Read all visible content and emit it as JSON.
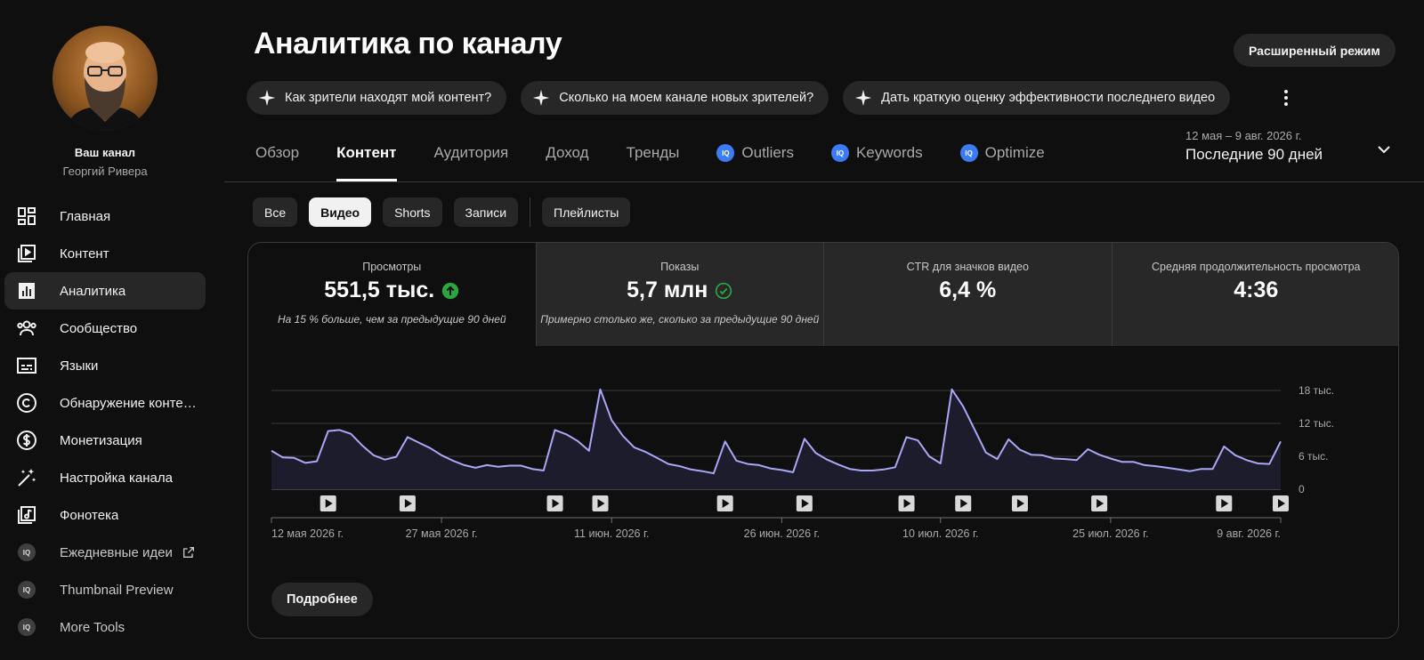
{
  "sidebar": {
    "channel_title": "Ваш канал",
    "channel_name": "Георгий Ривера",
    "items": [
      {
        "label": "Главная",
        "icon": "dashboard-icon"
      },
      {
        "label": "Контент",
        "icon": "content-icon"
      },
      {
        "label": "Аналитика",
        "icon": "analytics-icon",
        "active": true
      },
      {
        "label": "Сообщество",
        "icon": "community-icon"
      },
      {
        "label": "Языки",
        "icon": "subtitles-icon"
      },
      {
        "label": "Обнаружение контента",
        "icon": "copyright-icon"
      },
      {
        "label": "Монетизация",
        "icon": "dollar-icon"
      },
      {
        "label": "Настройка канала",
        "icon": "magic-wand-icon"
      },
      {
        "label": "Фонотека",
        "icon": "audio-library-icon"
      }
    ],
    "ext_items": [
      {
        "label": "Ежедневные идеи",
        "icon": "vidiq-icon",
        "external": true
      },
      {
        "label": "Thumbnail Preview",
        "icon": "vidiq-icon"
      },
      {
        "label": "More Tools",
        "icon": "vidiq-icon"
      }
    ],
    "iq_badge": "IQ"
  },
  "header": {
    "title": "Аналитика по каналу",
    "advanced_mode": "Расширенный режим"
  },
  "suggestions": [
    "Как зрители находят мой контент?",
    "Сколько на моем канале новых зрителей?",
    "Дать краткую оценку эффективности последнего видео"
  ],
  "tabs": [
    {
      "label": "Обзор"
    },
    {
      "label": "Контент",
      "active": true
    },
    {
      "label": "Аудитория"
    },
    {
      "label": "Доход"
    },
    {
      "label": "Тренды"
    },
    {
      "label": "Outliers",
      "iq": true
    },
    {
      "label": "Keywords",
      "iq": true
    },
    {
      "label": "Optimize",
      "iq": true
    }
  ],
  "date_range": {
    "dates": "12 мая – 9 авг. 2026 г.",
    "label": "Последние 90 дней"
  },
  "filters": {
    "all": "Все",
    "video": "Видео",
    "shorts": "Shorts",
    "records": "Записи",
    "playlists": "Плейлисты"
  },
  "metrics": [
    {
      "label": "Просмотры",
      "value": "551,5 тыс.",
      "note": "На 15 % больше, чем за предыдущие 90 дней",
      "icon": "arrow-up-circle-icon",
      "icon_color": "#2ba640"
    },
    {
      "label": "Показы",
      "value": "5,7 млн",
      "note": "Примерно столько же, сколько за предыдущие 90 дней",
      "icon": "check-circle-icon",
      "icon_color": "#2ba640"
    },
    {
      "label": "CTR для значков видео",
      "value": "6,4 %",
      "note": ""
    },
    {
      "label": "Средняя продолжительность просмотра",
      "value": "4:36",
      "note": ""
    }
  ],
  "chart_data": {
    "type": "area",
    "series": [
      {
        "values": [
          7000,
          5800,
          5700,
          4800,
          5100,
          10600,
          10800,
          10100,
          8000,
          6200,
          5400,
          5900,
          9500,
          8500,
          7500,
          6200,
          5200,
          4400,
          3900,
          4400,
          4100,
          4300,
          4300,
          3700,
          3400,
          10800,
          10000,
          8800,
          7000,
          18200,
          12600,
          9700,
          7600,
          6800,
          5700,
          4600,
          4200,
          3600,
          3300,
          2900,
          8700,
          5200,
          4600,
          4400,
          3800,
          3500,
          3100,
          9200,
          6600,
          5400,
          4500,
          3700,
          3400,
          3400,
          3600,
          4000,
          9500,
          8900,
          6000,
          4700,
          18200,
          15100,
          10900,
          6700,
          5500,
          9100,
          7200,
          6300,
          6200,
          5600,
          5500,
          5300,
          7300,
          6300,
          5600,
          5000,
          5000,
          4400,
          4200,
          3900,
          3600,
          3300,
          3700,
          3700,
          7800,
          6200,
          5300,
          4700,
          4600,
          8700
        ]
      }
    ],
    "x_tick_labels": [
      "12 мая 2026 г.",
      "27 мая 2026 г.",
      "11 июн. 2026 г.",
      "26 июн. 2026 г.",
      "10 июл. 2026 г.",
      "25 июл. 2026 г.",
      "9 авг. 2026 г."
    ],
    "x_tick_days": [
      0,
      15,
      30,
      45,
      59,
      74,
      89
    ],
    "y_tick_labels": [
      "18 тыс.",
      "12 тыс.",
      "6 тыс.",
      "0"
    ],
    "y_tick_values": [
      18000,
      12000,
      6000,
      0
    ],
    "ylim": [
      0,
      18000
    ],
    "video_marker_days": [
      5,
      12,
      25,
      29,
      40,
      47,
      56,
      61,
      66,
      73,
      84,
      89
    ],
    "line_color": "#aaa7f6",
    "fill_color": "#1d1c2c",
    "grid": true
  },
  "more_button": "Подробнее"
}
